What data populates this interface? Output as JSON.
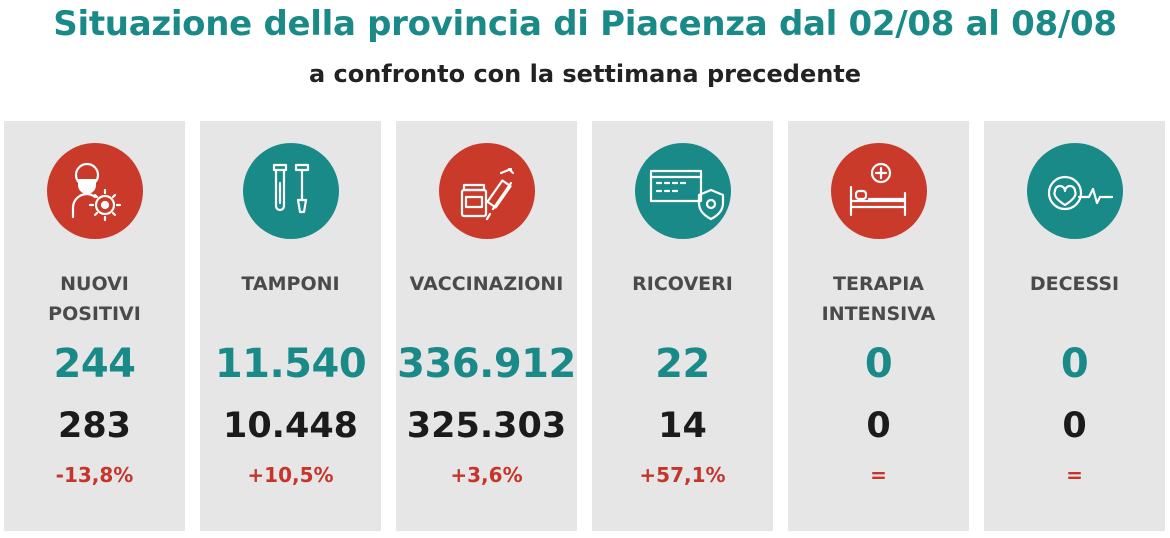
{
  "header": {
    "title": "Situazione della provincia di Piacenza dal 02/08 al 08/08",
    "subtitle": "a confronto con la settimana precedente"
  },
  "colors": {
    "teal": "#1a8a89",
    "red": "#c5352a",
    "card_bg": "#e6e6e6",
    "icon_red": "#c93a2a",
    "icon_teal": "#1a8a89"
  },
  "cards": [
    {
      "icon": "person-virus-icon",
      "icon_color": "red",
      "label": "NUOVI\nPOSITIVI",
      "current": "244",
      "previous": "283",
      "delta": "-13,8%"
    },
    {
      "icon": "test-tubes-icon",
      "icon_color": "teal",
      "label": "TAMPONI",
      "current": "11.540",
      "previous": "10.448",
      "delta": "+10,5%"
    },
    {
      "icon": "vaccine-syringe-icon",
      "icon_color": "red",
      "label": "VACCINAZIONI",
      "current": "336.912",
      "previous": "325.303",
      "delta": "+3,6%"
    },
    {
      "icon": "hospital-shield-icon",
      "icon_color": "teal",
      "label": "RICOVERI",
      "current": "22",
      "previous": "14",
      "delta": "+57,1%"
    },
    {
      "icon": "hospital-bed-icon",
      "icon_color": "red",
      "label": "TERAPIA\nINTENSIVA",
      "current": "0",
      "previous": "0",
      "delta": "="
    },
    {
      "icon": "heart-pulse-icon",
      "icon_color": "teal",
      "label": "DECESSI",
      "current": "0",
      "previous": "0",
      "delta": "="
    }
  ]
}
